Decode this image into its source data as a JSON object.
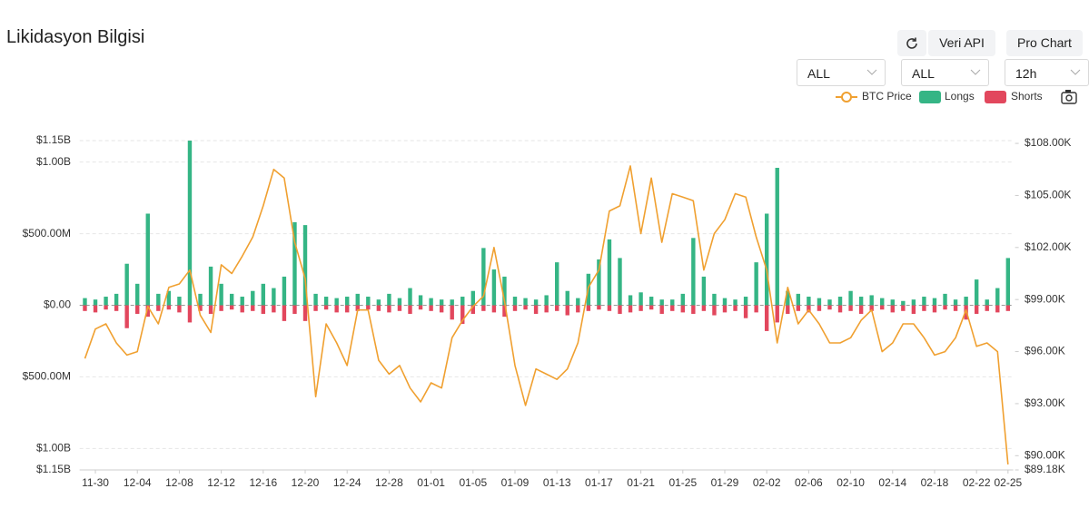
{
  "controls": {
    "buttons": [
      "Veri API",
      "Pro Chart"
    ],
    "dropdowns": [
      "ALL",
      "ALL",
      "12h"
    ]
  },
  "chart_data": {
    "type": "bar",
    "title": "Likidasyon Bilgisi",
    "categories": [
      null,
      "11-30",
      null,
      null,
      null,
      "12-04",
      null,
      null,
      null,
      "12-08",
      null,
      null,
      null,
      "12-12",
      null,
      null,
      null,
      "12-16",
      null,
      null,
      null,
      "12-20",
      null,
      null,
      null,
      "12-24",
      null,
      null,
      null,
      "12-28",
      null,
      null,
      null,
      "01-01",
      null,
      null,
      null,
      "01-05",
      null,
      null,
      null,
      "01-09",
      null,
      null,
      null,
      "01-13",
      null,
      null,
      null,
      "01-17",
      null,
      null,
      null,
      "01-21",
      null,
      null,
      null,
      "01-25",
      null,
      null,
      null,
      "01-29",
      null,
      null,
      null,
      "02-02",
      null,
      null,
      null,
      "02-06",
      null,
      null,
      null,
      "02-10",
      null,
      null,
      null,
      "02-14",
      null,
      null,
      null,
      "02-18",
      null,
      null,
      null,
      "02-22",
      null,
      null,
      "02-25"
    ],
    "series": [
      {
        "name": "BTC Price",
        "type": "line",
        "axis": "y2",
        "color": "#f0a030",
        "values": [
          95600,
          97300,
          97600,
          96500,
          95800,
          96000,
          98600,
          97600,
          99700,
          99900,
          100700,
          98100,
          97100,
          101000,
          100500,
          101500,
          102600,
          104400,
          106500,
          106000,
          102300,
          100200,
          93400,
          97600,
          96500,
          95200,
          98400,
          98400,
          95500,
          94700,
          95200,
          93900,
          93100,
          94200,
          93900,
          96800,
          97800,
          98600,
          99200,
          102000,
          98900,
          95200,
          92900,
          95000,
          94700,
          94400,
          95000,
          96500,
          99700,
          100700,
          104100,
          104400,
          106700,
          102800,
          106000,
          102300,
          105100,
          104900,
          104700,
          100700,
          102800,
          103600,
          105100,
          104900,
          102600,
          100700,
          96500,
          99700,
          97600,
          98400,
          97600,
          96500,
          96500,
          96800,
          97800,
          98400,
          96000,
          96500,
          97600,
          97600,
          96800,
          95800,
          96000,
          96800,
          98400,
          96300,
          96500,
          96000,
          89500
        ]
      },
      {
        "name": "Longs",
        "type": "bar",
        "color": "#35b585",
        "values": [
          50000000,
          40000000,
          60000000,
          80000000,
          290000000,
          150000000,
          640000000,
          80000000,
          100000000,
          60000000,
          1150000000,
          80000000,
          270000000,
          150000000,
          80000000,
          60000000,
          100000000,
          150000000,
          120000000,
          200000000,
          580000000,
          560000000,
          80000000,
          60000000,
          50000000,
          60000000,
          80000000,
          60000000,
          40000000,
          80000000,
          50000000,
          120000000,
          70000000,
          50000000,
          40000000,
          40000000,
          60000000,
          100000000,
          400000000,
          250000000,
          200000000,
          60000000,
          50000000,
          40000000,
          70000000,
          300000000,
          100000000,
          50000000,
          220000000,
          320000000,
          460000000,
          330000000,
          70000000,
          90000000,
          60000000,
          40000000,
          40000000,
          80000000,
          470000000,
          200000000,
          80000000,
          50000000,
          40000000,
          60000000,
          300000000,
          640000000,
          960000000,
          100000000,
          80000000,
          60000000,
          50000000,
          40000000,
          60000000,
          100000000,
          60000000,
          70000000,
          50000000,
          40000000,
          30000000,
          40000000,
          60000000,
          50000000,
          80000000,
          40000000,
          60000000,
          180000000,
          40000000,
          120000000,
          330000000
        ]
      },
      {
        "name": "Shorts",
        "type": "bar",
        "color": "#e2475d",
        "values": [
          -40000000,
          -50000000,
          -30000000,
          -40000000,
          -160000000,
          -60000000,
          -80000000,
          -40000000,
          -30000000,
          -50000000,
          -120000000,
          -40000000,
          -60000000,
          -40000000,
          -30000000,
          -50000000,
          -40000000,
          -60000000,
          -50000000,
          -110000000,
          -60000000,
          -110000000,
          -40000000,
          -30000000,
          -50000000,
          -50000000,
          -40000000,
          -30000000,
          -40000000,
          -50000000,
          -40000000,
          -60000000,
          -30000000,
          -40000000,
          -50000000,
          -100000000,
          -130000000,
          -60000000,
          -40000000,
          -50000000,
          -80000000,
          -40000000,
          -30000000,
          -60000000,
          -50000000,
          -40000000,
          -70000000,
          -50000000,
          -40000000,
          -30000000,
          -40000000,
          -60000000,
          -50000000,
          -40000000,
          -30000000,
          -60000000,
          -40000000,
          -50000000,
          -60000000,
          -40000000,
          -70000000,
          -50000000,
          -40000000,
          -90000000,
          -50000000,
          -180000000,
          -120000000,
          -60000000,
          -40000000,
          -50000000,
          -40000000,
          -30000000,
          -50000000,
          -40000000,
          -60000000,
          -40000000,
          -30000000,
          -50000000,
          -40000000,
          -60000000,
          -40000000,
          -50000000,
          -30000000,
          -40000000,
          -100000000,
          -60000000,
          -40000000,
          -50000000,
          -40000000
        ]
      }
    ],
    "ylim": [
      -1150000000,
      1150000000
    ],
    "yticks": [
      {
        "value": 1150000000,
        "label": "$1.15B"
      },
      {
        "value": 1000000000,
        "label": "$1.00B"
      },
      {
        "value": 500000000,
        "label": "$500.00M"
      },
      {
        "value": 0,
        "label": "$0.00"
      },
      {
        "value": -500000000,
        "label": "$500.00M"
      },
      {
        "value": -1000000000,
        "label": "$1.00B"
      },
      {
        "value": -1150000000,
        "label": "$1.15B"
      }
    ],
    "y2lim": [
      89180,
      108160
    ],
    "y2ticks": [
      {
        "value": 108000,
        "label": "$108.00K"
      },
      {
        "value": 105000,
        "label": "$105.00K"
      },
      {
        "value": 102000,
        "label": "$102.00K"
      },
      {
        "value": 99000,
        "label": "$99.00K"
      },
      {
        "value": 96000,
        "label": "$96.00K"
      },
      {
        "value": 93000,
        "label": "$93.00K"
      },
      {
        "value": 90000,
        "label": "$90.00K"
      },
      {
        "value": 89180,
        "label": "$89.18K"
      }
    ],
    "grid": true,
    "legend": "top-right"
  }
}
